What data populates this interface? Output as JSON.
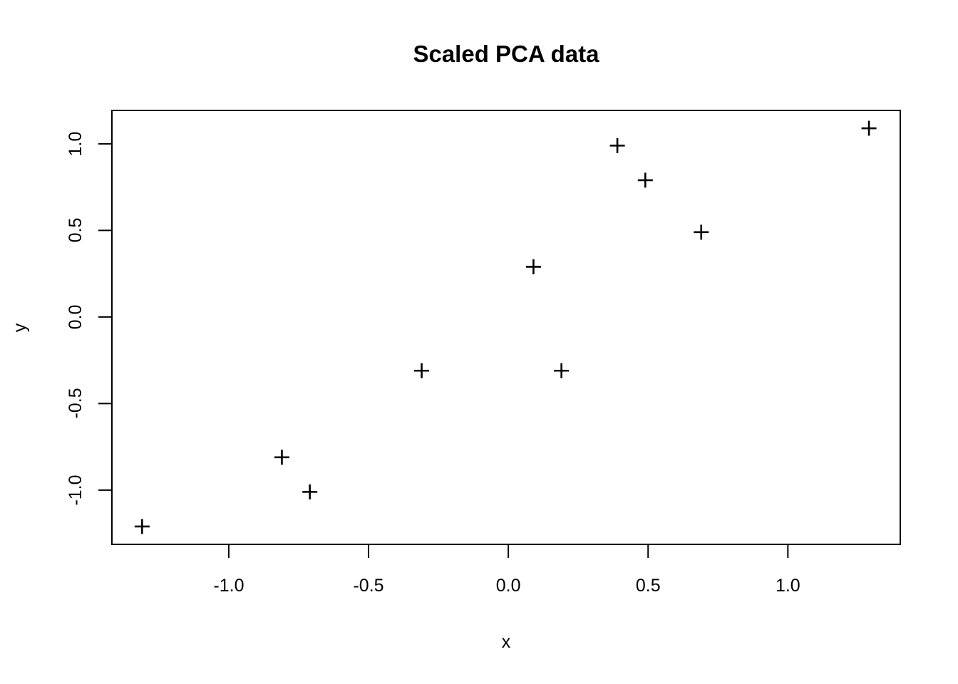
{
  "chart_data": {
    "type": "scatter",
    "title": "Scaled PCA data",
    "xlabel": "x",
    "ylabel": "y",
    "marker_symbol": "plus",
    "grid": false,
    "legend": null,
    "colors": {
      "foreground": "#000000",
      "background": "#ffffff"
    },
    "xlim": [
      -1.418,
      1.402
    ],
    "ylim": [
      -1.313,
      1.193
    ],
    "x_ticks": [
      -1.0,
      -0.5,
      0.0,
      0.5,
      1.0
    ],
    "x_tick_labels": [
      "-1.0",
      "-0.5",
      "0.0",
      "0.5",
      "1.0"
    ],
    "y_ticks": [
      -1.0,
      -0.5,
      0.0,
      0.5,
      1.0
    ],
    "y_tick_labels": [
      "-1.0",
      "-0.5",
      "0.0",
      "0.5",
      "1.0"
    ],
    "points": [
      {
        "x": 0.69,
        "y": 0.49
      },
      {
        "x": -1.31,
        "y": -1.21
      },
      {
        "x": 0.39,
        "y": 0.99
      },
      {
        "x": 0.09,
        "y": 0.29
      },
      {
        "x": 1.29,
        "y": 1.09
      },
      {
        "x": 0.49,
        "y": 0.79
      },
      {
        "x": 0.19,
        "y": -0.31
      },
      {
        "x": -0.81,
        "y": -0.81
      },
      {
        "x": -0.31,
        "y": -0.31
      },
      {
        "x": -0.71,
        "y": -1.01
      }
    ]
  }
}
